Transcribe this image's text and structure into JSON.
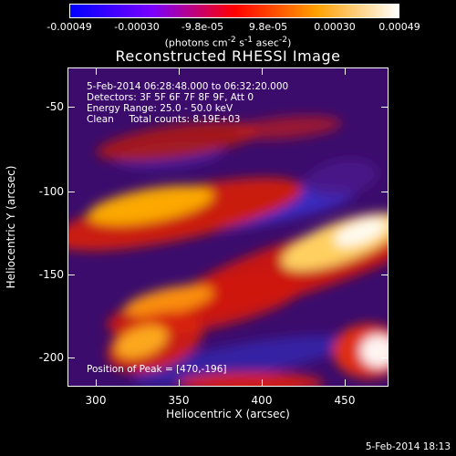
{
  "colorbar": {
    "ticks": [
      "-0.00049",
      "-0.00030",
      "-9.8e-05",
      "9.8e-05",
      "0.00030",
      "0.00049"
    ],
    "units_html": "(photons cm<sup>-2</sup> s<sup>-1</sup> asec<sup>-2</sup>)",
    "colors": [
      "#0000ff",
      "#7a00ff",
      "#ff0000",
      "#ffa000",
      "#ffffff"
    ]
  },
  "title": "Reconstructed RHESSI Image",
  "info": {
    "line1": "5-Feb-2014 06:28:48.000 to 06:32:20.000",
    "line2": "Detectors: 3F 5F 6F 7F 8F 9F, Att 0",
    "line3": "Energy Range: 25.0 - 50.0 keV",
    "line4": "Clean     Total counts: 8.19E+03",
    "peak": "Position of Peak = [470,-196]"
  },
  "axes": {
    "xlabel": "Heliocentric X (arcsec)",
    "ylabel": "Heliocentric Y (arcsec)",
    "xticks": [
      "300",
      "350",
      "400",
      "450"
    ],
    "yticks": [
      "-50",
      "-100",
      "-150",
      "-200"
    ]
  },
  "footer": "5-Feb-2014 18:13"
}
